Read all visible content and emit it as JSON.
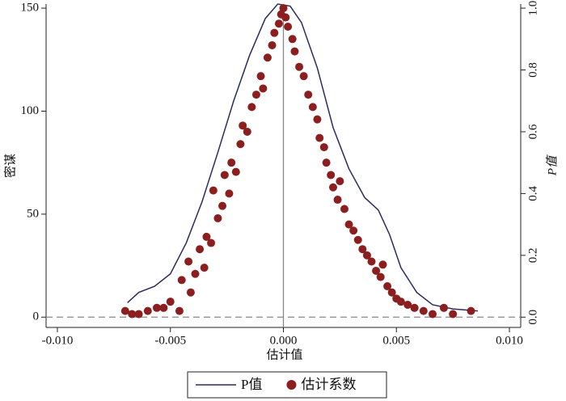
{
  "chart_data": {
    "type": "line",
    "x_label": "估计值",
    "y_label": "密谋",
    "y2_label": "P值",
    "xlim": [
      -0.0105,
      0.0105
    ],
    "ylim": [
      -5,
      152
    ],
    "y2lim": [
      -0.0333,
      1.0133
    ],
    "xticks": [
      {
        "value": -0.01,
        "label": "-0.010"
      },
      -0.005,
      {
        "value": 0,
        "label": "0.000"
      },
      0.005,
      {
        "value": 0.01,
        "label": "0.010"
      }
    ],
    "yticks": [
      0,
      50,
      100,
      150
    ],
    "y2ticks": [
      {
        "value": 0,
        "label": "0.0"
      },
      0.2,
      0.4,
      0.6,
      0.8,
      {
        "value": 1,
        "label": "1.0"
      }
    ],
    "hline": 0,
    "vline": 0,
    "ref_color": "#888888",
    "series": [
      {
        "name": "P值",
        "type": "line",
        "color": "#2b2b5e",
        "x": [
          -0.0069,
          -0.0064,
          -0.0057,
          -0.005,
          -0.0043,
          -0.0036,
          -0.0029,
          -0.0022,
          -0.0015,
          -0.0008,
          -0.00025,
          0.0003,
          0.0008,
          0.0015,
          0.0022,
          0.0029,
          0.0036,
          0.0042,
          0.0047,
          0.0052,
          0.0059,
          0.0066,
          0.0075,
          0.0086
        ],
        "values": [
          7,
          12,
          15,
          21,
          36,
          56,
          80,
          105,
          127,
          145,
          152,
          151,
          143,
          121,
          92,
          72,
          58,
          52,
          40,
          24,
          12,
          6,
          4,
          3
        ]
      },
      {
        "name": "估计系数",
        "type": "scatter",
        "color": "#8b1f1f",
        "axis": "y2",
        "x": [
          -0.007,
          -0.0067,
          -0.0064,
          -0.006,
          -0.0056,
          -0.0053,
          -0.005,
          -0.0046,
          -0.0045,
          -0.0042,
          -0.0041,
          -0.0039,
          -0.0037,
          -0.0035,
          -0.0034,
          -0.0032,
          -0.0031,
          -0.0029,
          -0.0027,
          -0.0026,
          -0.0024,
          -0.0023,
          -0.0021,
          -0.0019,
          -0.0018,
          -0.0016,
          -0.0014,
          -0.0012,
          -0.001,
          -0.0009,
          -0.0007,
          -0.0005,
          -0.0004,
          -0.0002,
          -0.0001,
          0,
          0.0001,
          0.0002,
          0.0004,
          0.0005,
          0.0007,
          0.0009,
          0.0011,
          0.0013,
          0.0015,
          0.0016,
          0.0018,
          0.0019,
          0.0021,
          0.0022,
          0.0024,
          0.0025,
          0.0027,
          0.0029,
          0.0031,
          0.0033,
          0.0035,
          0.0037,
          0.0039,
          0.0041,
          0.0043,
          0.0044,
          0.0046,
          0.0048,
          0.005,
          0.0052,
          0.0055,
          0.0058,
          0.0062,
          0.0066,
          0.0071,
          0.0075,
          0.0083
        ],
        "values": [
          0.02,
          0.01,
          0.01,
          0.02,
          0.03,
          0.03,
          0.05,
          0.02,
          0.12,
          0.18,
          0.08,
          0.14,
          0.22,
          0.16,
          0.26,
          0.24,
          0.41,
          0.32,
          0.36,
          0.46,
          0.4,
          0.5,
          0.47,
          0.56,
          0.62,
          0.6,
          0.68,
          0.72,
          0.78,
          0.74,
          0.84,
          0.88,
          0.92,
          0.95,
          0.98,
          1.0,
          0.97,
          0.94,
          0.9,
          0.86,
          0.81,
          0.78,
          0.72,
          0.68,
          0.64,
          0.58,
          0.55,
          0.5,
          0.46,
          0.42,
          0.38,
          0.44,
          0.35,
          0.3,
          0.28,
          0.25,
          0.22,
          0.2,
          0.18,
          0.15,
          0.13,
          0.17,
          0.1,
          0.08,
          0.06,
          0.05,
          0.04,
          0.03,
          0.02,
          0.01,
          0.03,
          0.01,
          0.02
        ]
      }
    ]
  }
}
